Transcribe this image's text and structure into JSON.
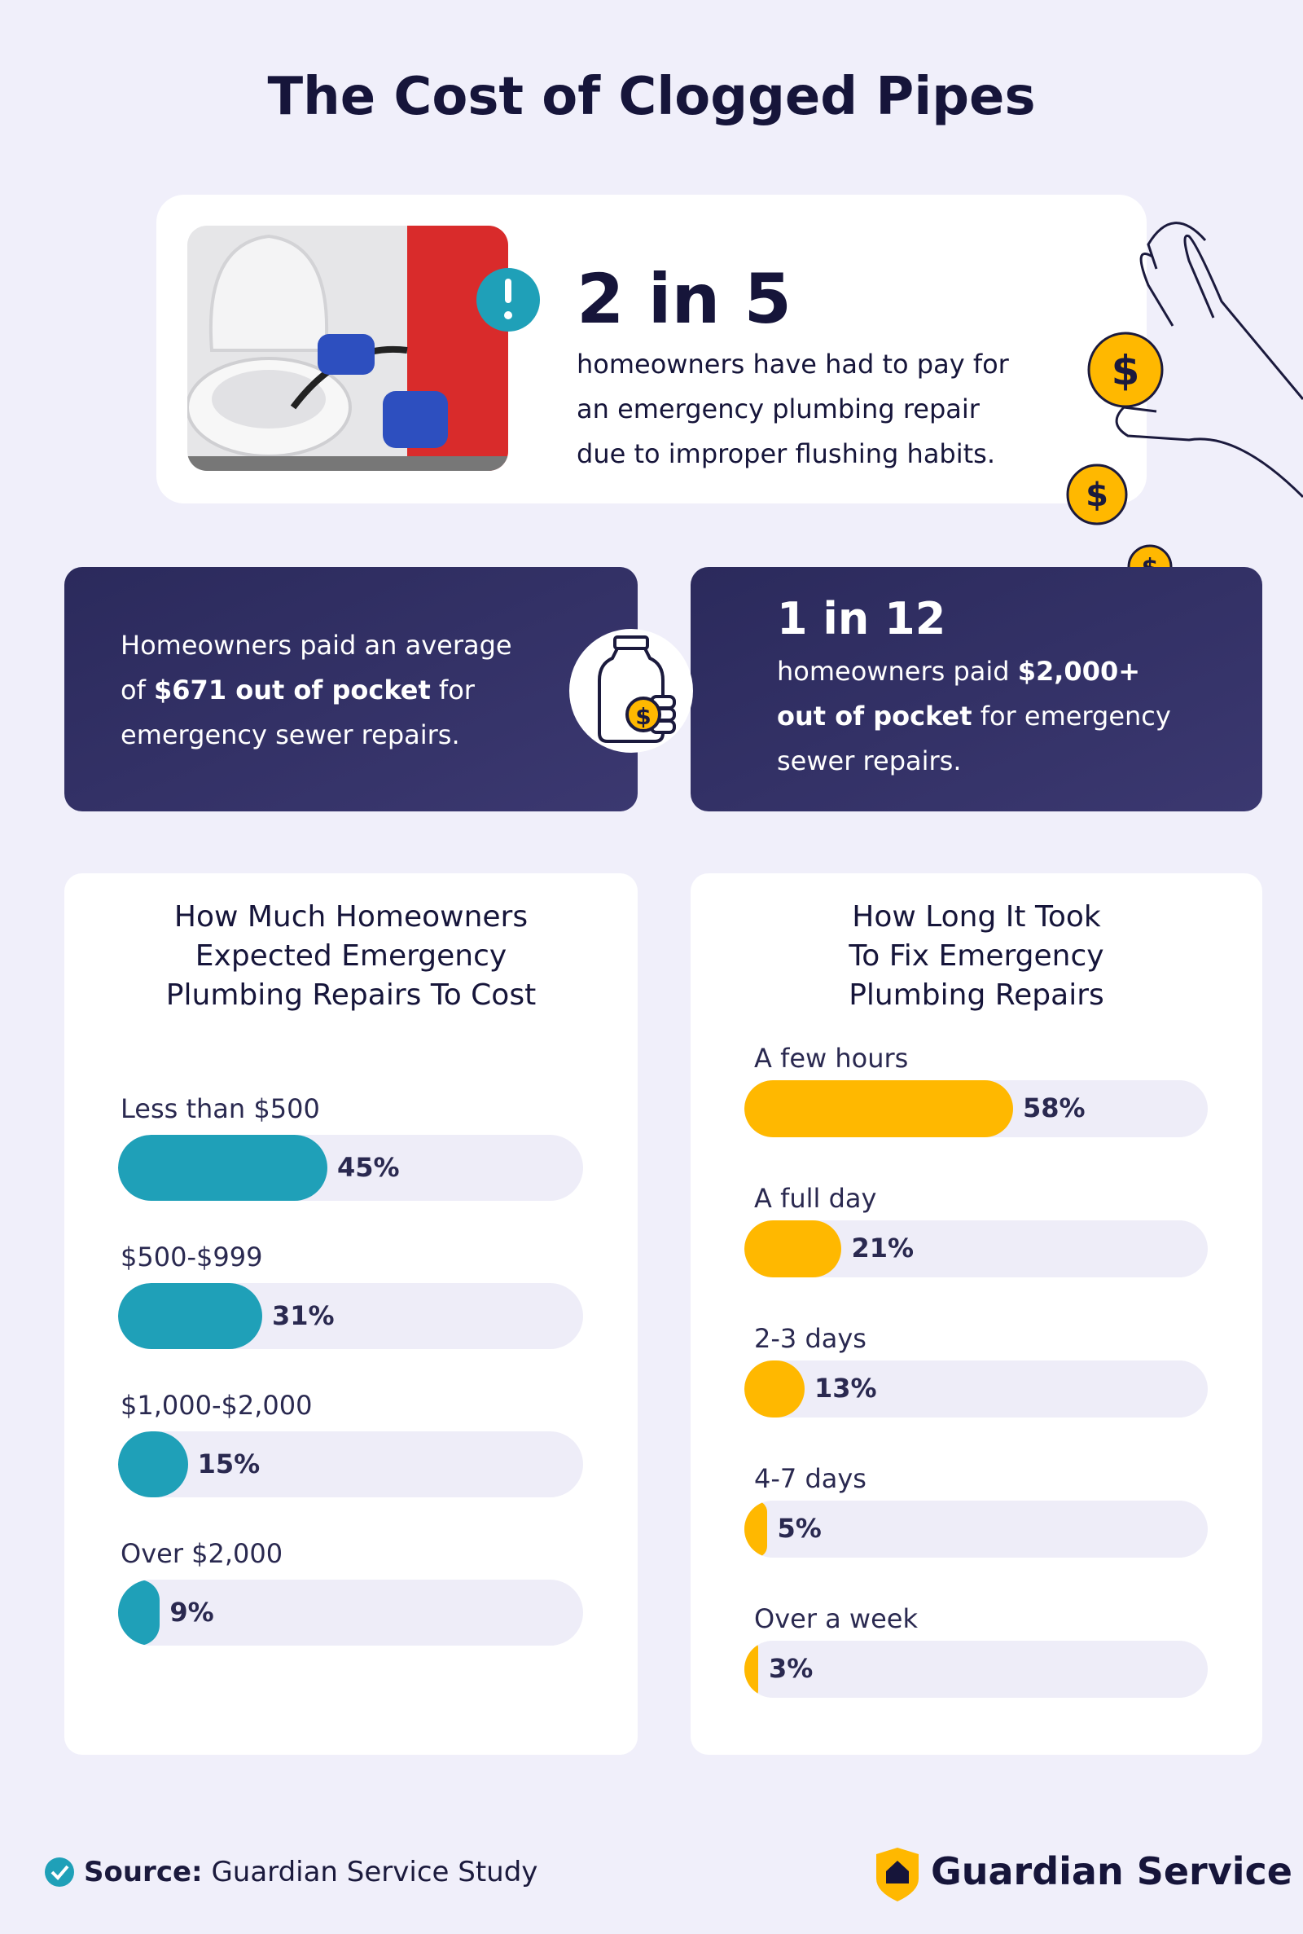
{
  "title": "The Cost of Clogged Pipes",
  "stat1": {
    "headline": "2 in 5",
    "lines": [
      "homeowners have had to pay for",
      "an emergency plumbing repair",
      "due to improper flushing habits."
    ]
  },
  "stat2": {
    "lines": [
      [
        {
          "text": "Homeowners paid an average",
          "bold": false
        }
      ],
      [
        {
          "text": "of ",
          "bold": false
        },
        {
          "text": "$671 out of pocket",
          "bold": true
        },
        {
          "text": " for",
          "bold": false
        }
      ],
      [
        {
          "text": "emergency sewer repairs.",
          "bold": false
        }
      ]
    ]
  },
  "stat3": {
    "headline": "1 in 12",
    "lines": [
      [
        {
          "text": "homeowners paid ",
          "bold": false
        },
        {
          "text": "$2,000+",
          "bold": true
        }
      ],
      [
        {
          "text": "out of pocket",
          "bold": true
        },
        {
          "text": " for emergency",
          "bold": false
        }
      ],
      [
        {
          "text": "sewer repairs.",
          "bold": false
        }
      ]
    ]
  },
  "chart_data": [
    {
      "type": "bar",
      "title": [
        "How Much Homeowners",
        "Expected Emergency",
        "Plumbing Repairs To Cost"
      ],
      "categories": [
        "Less than $500",
        "$500-$999",
        "$1,000-$2,000",
        "Over $2,000"
      ],
      "values": [
        45,
        31,
        15,
        9
      ],
      "value_labels": [
        "45%",
        "31%",
        "15%",
        "9%"
      ],
      "color": "#1fa0b8"
    },
    {
      "type": "bar",
      "title": [
        "How Long It Took",
        "To Fix Emergency",
        "Plumbing Repairs"
      ],
      "categories": [
        "A few hours",
        "A full day",
        "2-3 days",
        "4-7 days",
        "Over a week"
      ],
      "values": [
        58,
        21,
        13,
        5,
        3
      ],
      "value_labels": [
        "58%",
        "21%",
        "13%",
        "5%",
        "3%"
      ],
      "color": "#ffb800"
    }
  ],
  "source": {
    "label": "Source:",
    "text": "Guardian Service Study"
  },
  "brand": "Guardian Service"
}
